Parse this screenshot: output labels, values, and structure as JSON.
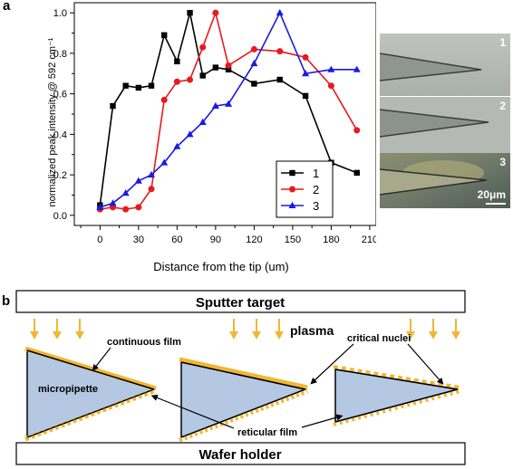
{
  "panel_a": {
    "label": "a"
  },
  "panel_b": {
    "label": "b"
  },
  "chart_data": {
    "type": "line",
    "title": "",
    "xlabel": "Distance from the tip (um)",
    "ylabel": "normalized peak intensity @ 592 cm⁻¹",
    "xlim": [
      -20,
      215
    ],
    "ylim": [
      -0.05,
      1.05
    ],
    "xticks": [
      0,
      30,
      60,
      90,
      120,
      150,
      180,
      210
    ],
    "yticks": [
      0.0,
      0.2,
      0.4,
      0.6,
      0.8,
      1.0
    ],
    "yticklabels": [
      "0.0",
      "0.2",
      "0.4",
      "0.6",
      "0.8",
      "1.0"
    ],
    "legend_position": "lower-right",
    "series": [
      {
        "name": "1",
        "color": "#000000",
        "marker": "square",
        "x": [
          0,
          10,
          20,
          30,
          40,
          50,
          60,
          70,
          80,
          90,
          100,
          120,
          140,
          160,
          180,
          200
        ],
        "y": [
          0.05,
          0.54,
          0.64,
          0.63,
          0.64,
          0.89,
          0.76,
          1.0,
          0.69,
          0.73,
          0.72,
          0.65,
          0.67,
          0.59,
          0.26,
          0.21
        ]
      },
      {
        "name": "2",
        "color": "#e8191c",
        "marker": "circle",
        "x": [
          0,
          10,
          20,
          30,
          40,
          50,
          60,
          70,
          80,
          90,
          100,
          120,
          140,
          160,
          180,
          200
        ],
        "y": [
          0.03,
          0.04,
          0.03,
          0.04,
          0.13,
          0.57,
          0.66,
          0.67,
          0.83,
          1.0,
          0.74,
          0.82,
          0.81,
          0.78,
          0.64,
          0.42
        ]
      },
      {
        "name": "3",
        "color": "#1a1ae6",
        "marker": "triangle",
        "x": [
          0,
          10,
          20,
          30,
          40,
          50,
          60,
          70,
          80,
          90,
          100,
          120,
          140,
          160,
          180,
          200
        ],
        "y": [
          0.04,
          0.06,
          0.11,
          0.17,
          0.2,
          0.26,
          0.34,
          0.4,
          0.46,
          0.54,
          0.55,
          0.75,
          1.0,
          0.7,
          0.72,
          0.72
        ]
      }
    ]
  },
  "photos": {
    "numbers": [
      "1",
      "2",
      "3"
    ],
    "scale_bar_label": "20μm"
  },
  "schematic": {
    "sputter_target": "Sputter target",
    "wafer_holder": "Wafer holder",
    "plasma": "plasma",
    "labels": {
      "continuous_film": "continuous film",
      "critical_nuclei": "critical nuclei",
      "micropipette": "micropipette",
      "reticular_film": "reticular film"
    },
    "colors": {
      "film": "#f2b632",
      "pipette_fill": "#b4c7e3",
      "arrow": "#f2b632"
    }
  }
}
